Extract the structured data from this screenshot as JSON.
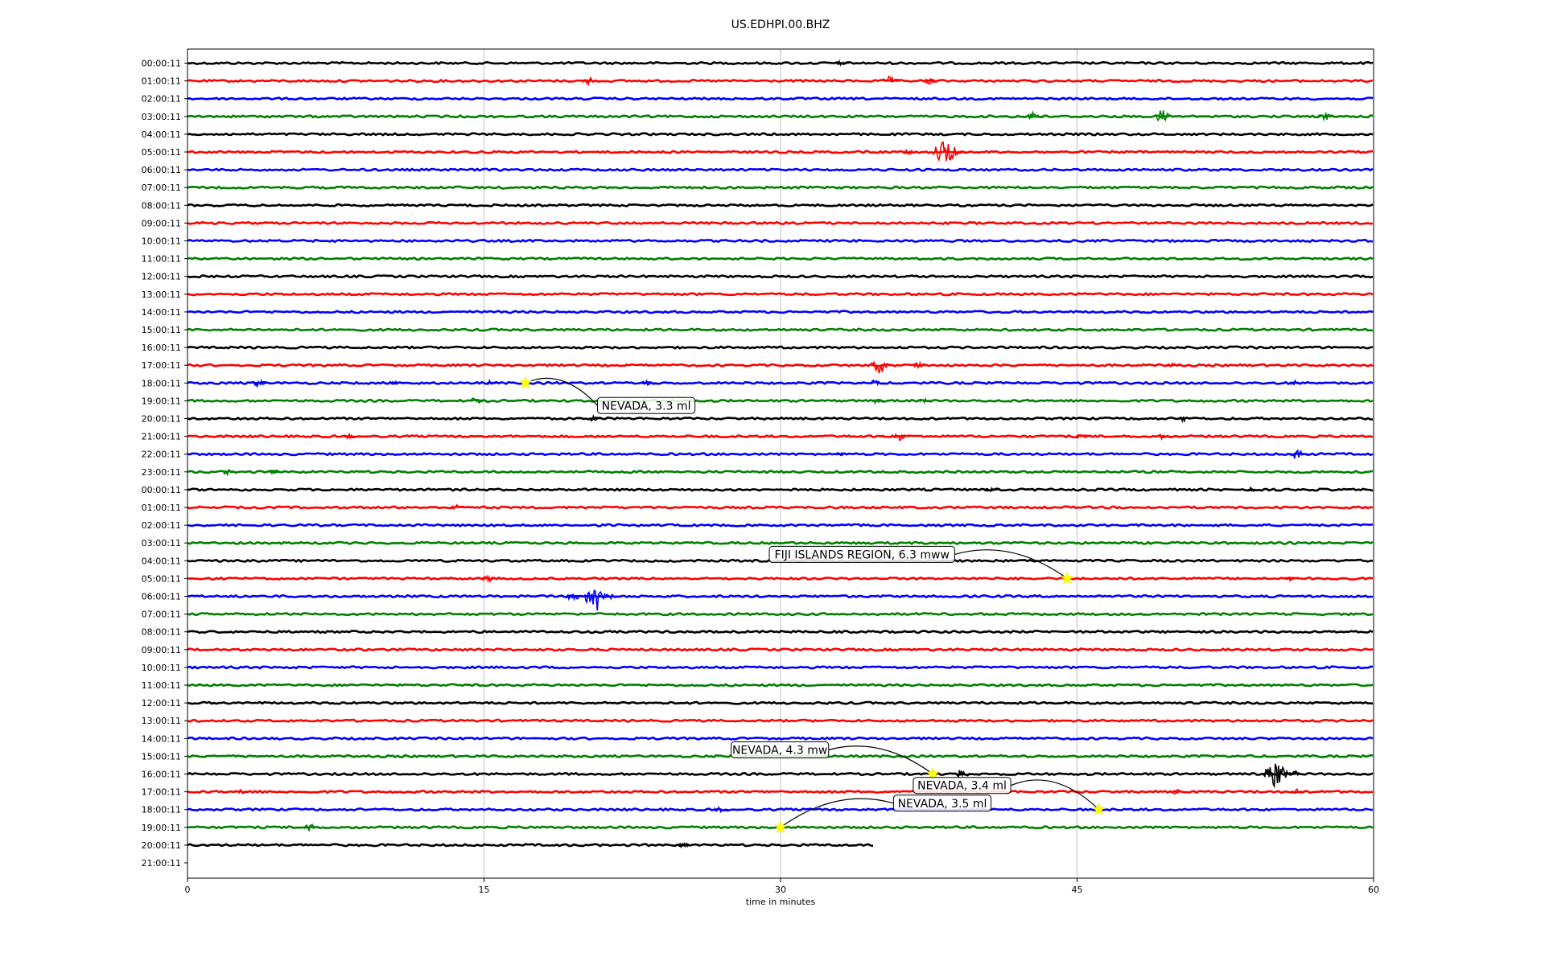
{
  "chart_data": {
    "type": "line",
    "title": "US.EDHPI.00.BHZ",
    "xlabel": "time in minutes",
    "ylabel": "",
    "xlim": [
      0,
      60
    ],
    "xticks": [
      0,
      15,
      30,
      45,
      60
    ],
    "grid": "vertical",
    "trace_colors": [
      "#000000",
      "#ff0000",
      "#0000ff",
      "#008000"
    ],
    "row_labels": [
      "00:00:11",
      "01:00:11",
      "02:00:11",
      "03:00:11",
      "04:00:11",
      "05:00:11",
      "06:00:11",
      "07:00:11",
      "08:00:11",
      "09:00:11",
      "10:00:11",
      "11:00:11",
      "12:00:11",
      "13:00:11",
      "14:00:11",
      "15:00:11",
      "16:00:11",
      "17:00:11",
      "18:00:11",
      "19:00:11",
      "20:00:11",
      "21:00:11",
      "22:00:11",
      "23:00:11",
      "00:00:11",
      "01:00:11",
      "02:00:11",
      "03:00:11",
      "04:00:11",
      "05:00:11",
      "06:00:11",
      "07:00:11",
      "08:00:11",
      "09:00:11",
      "10:00:11",
      "11:00:11",
      "12:00:11",
      "13:00:11",
      "14:00:11",
      "15:00:11",
      "16:00:11",
      "17:00:11",
      "18:00:11",
      "19:00:11",
      "20:00:11",
      "21:00:11"
    ],
    "last_trace_end_minute": 34.8,
    "bursts": [
      {
        "row": 0,
        "minute": 33.0,
        "amp": 0.3
      },
      {
        "row": 1,
        "minute": 20.3,
        "amp": 0.5
      },
      {
        "row": 1,
        "minute": 35.5,
        "amp": 0.5
      },
      {
        "row": 1,
        "minute": 37.5,
        "amp": 0.4
      },
      {
        "row": 3,
        "minute": 42.8,
        "amp": 0.6
      },
      {
        "row": 3,
        "minute": 49.3,
        "amp": 0.8
      },
      {
        "row": 3,
        "minute": 57.5,
        "amp": 0.5
      },
      {
        "row": 5,
        "minute": 38.3,
        "amp": 1.6
      },
      {
        "row": 5,
        "minute": 36.5,
        "amp": 0.3
      },
      {
        "row": 17,
        "minute": 35.0,
        "amp": 0.9
      },
      {
        "row": 17,
        "minute": 37.0,
        "amp": 0.4
      },
      {
        "row": 17,
        "minute": 49.8,
        "amp": 0.3
      },
      {
        "row": 18,
        "minute": 3.6,
        "amp": 0.5
      },
      {
        "row": 18,
        "minute": 10.5,
        "amp": 0.3
      },
      {
        "row": 18,
        "minute": 15.3,
        "amp": 0.3
      },
      {
        "row": 18,
        "minute": 23.2,
        "amp": 0.3
      },
      {
        "row": 18,
        "minute": 34.8,
        "amp": 0.4
      },
      {
        "row": 18,
        "minute": 56.0,
        "amp": 0.3
      },
      {
        "row": 19,
        "minute": 14.6,
        "amp": 0.5
      },
      {
        "row": 19,
        "minute": 34.8,
        "amp": 0.3
      },
      {
        "row": 19,
        "minute": 37.3,
        "amp": 0.3
      },
      {
        "row": 20,
        "minute": 20.5,
        "amp": 0.3
      },
      {
        "row": 20,
        "minute": 50.4,
        "amp": 0.3
      },
      {
        "row": 21,
        "minute": 36.0,
        "amp": 0.5
      },
      {
        "row": 21,
        "minute": 45.2,
        "amp": 0.4
      },
      {
        "row": 21,
        "minute": 49.3,
        "amp": 0.3
      },
      {
        "row": 21,
        "minute": 8.1,
        "amp": 0.3
      },
      {
        "row": 22,
        "minute": 33.0,
        "amp": 0.3
      },
      {
        "row": 22,
        "minute": 56.1,
        "amp": 0.6
      },
      {
        "row": 23,
        "minute": 2.0,
        "amp": 0.3
      },
      {
        "row": 23,
        "minute": 4.4,
        "amp": 0.3
      },
      {
        "row": 24,
        "minute": 40.6,
        "amp": 0.3
      },
      {
        "row": 24,
        "minute": 53.8,
        "amp": 0.3
      },
      {
        "row": 25,
        "minute": 13.6,
        "amp": 0.3
      },
      {
        "row": 29,
        "minute": 15.2,
        "amp": 0.4
      },
      {
        "row": 29,
        "minute": 55.8,
        "amp": 0.3
      },
      {
        "row": 30,
        "minute": 19.5,
        "amp": 0.6
      },
      {
        "row": 30,
        "minute": 20.7,
        "amp": 1.8
      },
      {
        "row": 40,
        "minute": 39.2,
        "amp": 0.6
      },
      {
        "row": 40,
        "minute": 55.0,
        "amp": 1.6
      },
      {
        "row": 40,
        "minute": 56.0,
        "amp": 0.4
      },
      {
        "row": 41,
        "minute": 2.7,
        "amp": 0.3
      },
      {
        "row": 41,
        "minute": 50.0,
        "amp": 0.3
      },
      {
        "row": 41,
        "minute": 56.1,
        "amp": 0.3
      },
      {
        "row": 42,
        "minute": 26.9,
        "amp": 0.3
      },
      {
        "row": 43,
        "minute": 6.2,
        "amp": 0.4
      },
      {
        "row": 43,
        "minute": 2.6,
        "amp": 0.2
      },
      {
        "row": 44,
        "minute": 25.1,
        "amp": 0.3
      }
    ],
    "events": [
      {
        "label": "NEVADA, 3.3 ml",
        "row": 18,
        "minute": 17.1
      },
      {
        "label": "FIJI ISLANDS REGION, 6.3 mww",
        "row": 29,
        "minute": 44.5
      },
      {
        "label": "NEVADA, 4.3 mw",
        "row": 40,
        "minute": 37.7
      },
      {
        "label": "NEVADA, 3.4 ml",
        "row": 42,
        "minute": 46.1
      },
      {
        "label": "NEVADA, 3.5 ml",
        "row": 43,
        "minute": 30.0
      }
    ]
  }
}
